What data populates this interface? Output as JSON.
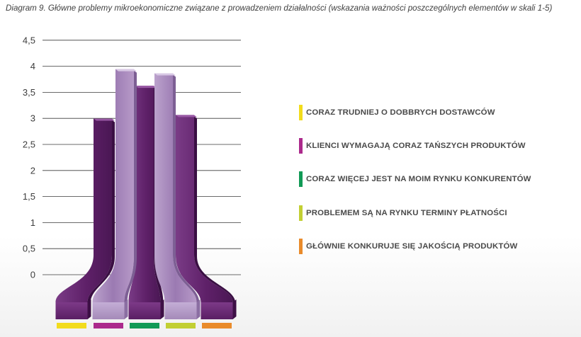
{
  "chart_data": {
    "type": "bar",
    "title": "Diagram 9. Główne problemy mikroekonomiczne związane z prowadzeniem działalności (wskazania ważności poszczególnych elementów w skali 1-5)",
    "xlabel": "",
    "ylabel": "",
    "ylim": [
      0,
      4.5
    ],
    "yticks": [
      "0",
      "0,5",
      "1",
      "1,5",
      "2",
      "2,5",
      "3",
      "3,5",
      "4",
      "4,5"
    ],
    "grid": true,
    "legend_position": "right",
    "categories": [
      "CORAZ TRUDNIEJ O DOBBRYCH DOSTAWCÓW",
      "KLIENCI WYMAGAJĄ CORAZ TAŃSZYCH PRODUKTÓW",
      "CORAZ WIĘCEJ JEST NA MOIM RYNKU KONKURENTÓW",
      "PROBLEMEM SĄ NA RYNKU TERMINY PŁATNOŚCI",
      "GŁÓWNIE KONKURUJE SIĘ JAKOŚCIĄ PRODUKTÓW"
    ],
    "values": [
      3.05,
      4.0,
      3.68,
      3.92,
      3.12
    ],
    "legend_colors": [
      "#f2dc1d",
      "#ac2a8c",
      "#119a56",
      "#c2cf33",
      "#e98b2b"
    ],
    "bar_styles": [
      "dark",
      "light",
      "dark",
      "light",
      "dark"
    ]
  }
}
